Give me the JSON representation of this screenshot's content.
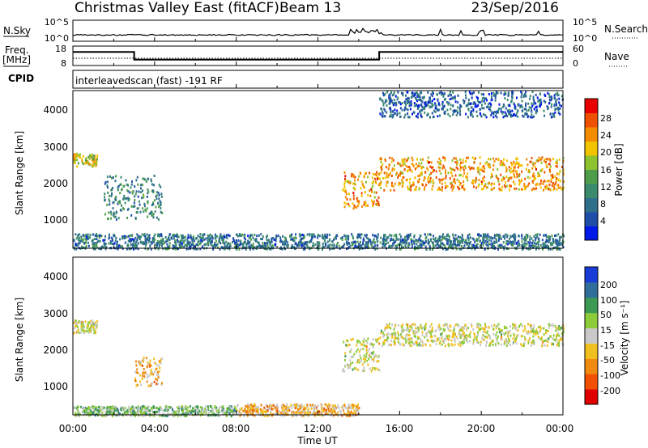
{
  "header": {
    "title": "Christmas Valley East (fitACF)",
    "beam": "Beam 13",
    "date": "23/Sep/2016"
  },
  "noise_panel": {
    "left_label": "N.Sky",
    "left_ticks": [
      "10^5",
      "10^0"
    ],
    "right_ticks": [
      "10^5",
      "10^0"
    ],
    "right_label": "N.Search"
  },
  "freq_panel": {
    "label_line1": "Freq.",
    "label_line2": "[MHz]",
    "left_ticks": [
      "18",
      "8"
    ],
    "right_ticks": [
      "60",
      "0"
    ],
    "right_label": "Nave"
  },
  "cpid_panel": {
    "label": "CPID",
    "text": "interleavedscan (fast) -191 RF"
  },
  "power_panel": {
    "ylabel": "Slant Range [km]",
    "yticks": [
      "4000",
      "3000",
      "2000",
      "1000"
    ],
    "colorbar_label": "Power [dB]",
    "colorbar_ticks": [
      "28",
      "24",
      "20",
      "16",
      "12",
      "8",
      "4"
    ],
    "colors": [
      "#0018e8",
      "#1f4ea8",
      "#2e6f8c",
      "#3a8a6e",
      "#4e9d4a",
      "#8ec22e",
      "#f2c400",
      "#f48c00",
      "#ee5000",
      "#e80000"
    ]
  },
  "velocity_panel": {
    "ylabel": "Slant Range [km]",
    "yticks": [
      "4000",
      "3000",
      "2000",
      "1000"
    ],
    "colorbar_label": "Velocity [m s⁻¹]",
    "colorbar_ticks": [
      "200",
      "100",
      "50",
      "15",
      "-15",
      "-50",
      "-100",
      "-200"
    ],
    "colors": [
      "#1a3cd6",
      "#2f6e9a",
      "#3d9a55",
      "#8ecb3a",
      "#c9c9c9",
      "#f0c020",
      "#f08a10",
      "#f05000",
      "#e00000"
    ]
  },
  "xaxis": {
    "ticks": [
      "00:00",
      "04:00",
      "08:00",
      "12:00",
      "16:00",
      "20:00",
      "00:00"
    ],
    "label": "Time UT"
  },
  "chart_data": {
    "type": "heatmap",
    "title": "Christmas Valley East (fitACF)",
    "xlabel": "Time UT",
    "ylabel": "Slant Range [km]",
    "xlim": [
      "00:00",
      "24:00"
    ],
    "ylim": [
      180,
      4500
    ],
    "frequency_MHz_segments": [
      {
        "start": "00:00",
        "end": "03:00",
        "value": 15
      },
      {
        "start": "03:00",
        "end": "15:00",
        "value": 11
      },
      {
        "start": "15:00",
        "end": "24:00",
        "value": 15
      }
    ],
    "power_clusters_dB": [
      {
        "start": "00:00",
        "end": "01:10",
        "range_km": [
          2450,
          2800
        ],
        "value": 18
      },
      {
        "start": "01:30",
        "end": "04:20",
        "range_km": [
          1000,
          2200
        ],
        "value": 10
      },
      {
        "start": "13:10",
        "end": "15:00",
        "range_km": [
          1300,
          2300
        ],
        "value": 22
      },
      {
        "start": "15:00",
        "end": "24:00",
        "range_km": [
          1800,
          2700
        ],
        "value": 22
      },
      {
        "start": "00:00",
        "end": "24:00",
        "range_km": [
          180,
          600
        ],
        "value": 8
      },
      {
        "start": "15:00",
        "end": "24:00",
        "range_km": [
          3800,
          4500
        ],
        "value": 6
      }
    ],
    "velocity_clusters_ms": [
      {
        "start": "00:00",
        "end": "01:10",
        "range_km": [
          2450,
          2800
        ],
        "value": 0
      },
      {
        "start": "03:00",
        "end": "04:20",
        "range_km": [
          1000,
          1800
        ],
        "value": -50
      },
      {
        "start": "13:10",
        "end": "15:00",
        "range_km": [
          1400,
          2300
        ],
        "value": 0
      },
      {
        "start": "15:00",
        "end": "24:00",
        "range_km": [
          2100,
          2700
        ],
        "value": 0
      },
      {
        "start": "08:00",
        "end": "14:00",
        "range_km": [
          180,
          500
        ],
        "value": -50
      },
      {
        "start": "00:00",
        "end": "08:00",
        "range_km": [
          180,
          450
        ],
        "value": 50
      }
    ]
  }
}
